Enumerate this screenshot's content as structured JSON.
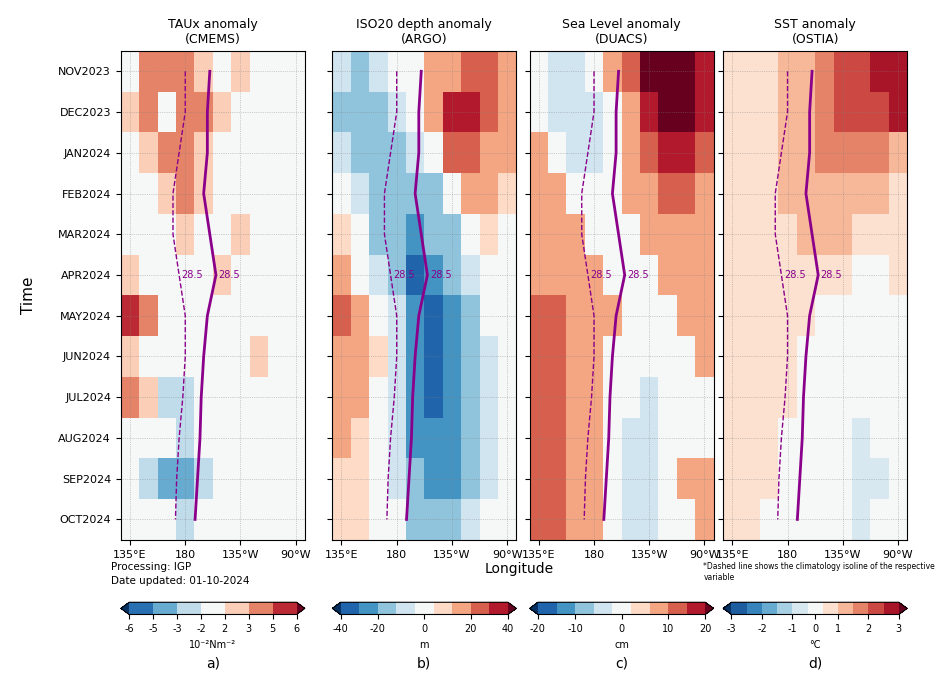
{
  "chart_data": [
    {
      "type": "heatmap",
      "title": "TAUx anomaly\n(CMEMS)",
      "grid": true,
      "x": [
        135,
        150,
        165,
        180,
        195,
        210,
        225,
        240,
        255,
        270
      ],
      "xlim": [
        127.5,
        277.5
      ],
      "xticks": [
        {
          "value": 135,
          "label": "135°E"
        },
        180,
        {
          "value": 225,
          "label": "135°W"
        },
        {
          "value": 270,
          "label": "90°W"
        }
      ],
      "y": [
        "NOV2023",
        "DEC2023",
        "JAN2024",
        "FEB2024",
        "MAR2024",
        "APR2024",
        "MAY2024",
        "JUN2024",
        "JUL2024",
        "AUG2024",
        "SEP2024",
        "OCT2024"
      ],
      "cells": [
        [
          1,
          3,
          4,
          3,
          2,
          1,
          2,
          -1,
          0,
          0
        ],
        [
          2,
          3,
          -2,
          3,
          3,
          2,
          1,
          0,
          1,
          0
        ],
        [
          -2,
          2,
          3,
          4,
          2,
          0,
          -1,
          1,
          0,
          0
        ],
        [
          -2,
          0,
          2,
          3,
          2,
          1,
          0,
          1,
          1,
          0
        ],
        [
          0,
          -2,
          1,
          2,
          -1,
          0,
          2,
          1,
          0,
          0
        ],
        [
          2,
          -2,
          -1,
          0,
          -1,
          2,
          0,
          1,
          1,
          0
        ],
        [
          5,
          3,
          -2,
          -2,
          -1,
          0,
          1,
          0,
          0,
          0
        ],
        [
          2,
          1,
          0,
          -2,
          -2,
          0,
          0,
          2,
          1,
          0
        ],
        [
          3,
          2,
          -3,
          -3,
          -2,
          -1,
          0,
          0,
          1,
          0
        ],
        [
          0,
          -2,
          -2,
          -3,
          -2,
          -2,
          0,
          0,
          0,
          0
        ],
        [
          0,
          -3,
          -5,
          -5,
          -3,
          -2,
          -2,
          0,
          0,
          0
        ],
        [
          0,
          -2,
          -2,
          -3,
          -2,
          -2,
          0,
          0,
          0,
          0
        ]
      ],
      "colorbar": {
        "range": [
          -6,
          6
        ],
        "levels": [
          -6,
          -5,
          -3,
          -2,
          2,
          3,
          5,
          6
        ],
        "ticks": [
          -6,
          -5,
          -3,
          -2,
          2,
          3,
          5,
          6
        ],
        "label": "10⁻²Nm⁻²"
      },
      "isoline_label": "28.5",
      "series": [
        {
          "color": "#8b008b",
          "line_style": "solid",
          "values": [
            200,
            198,
            198,
            195,
            200,
            205,
            198,
            195,
            193,
            192,
            190,
            188
          ]
        },
        {
          "color": "#8b008b",
          "line_style": "dashed",
          "values": [
            180,
            180,
            175,
            170,
            170,
            175,
            180,
            180,
            178,
            175,
            173,
            172
          ]
        }
      ]
    },
    {
      "type": "heatmap",
      "title": "ISO20 depth anomaly\n(ARGO)",
      "grid": true,
      "tick_labels": "x",
      "x": [
        135,
        150,
        165,
        180,
        195,
        210,
        225,
        240,
        255,
        270
      ],
      "xlim": [
        127.5,
        277.5
      ],
      "xticks": [
        {
          "value": 135,
          "label": "135°E"
        },
        180,
        {
          "value": 225,
          "label": "135°W"
        },
        {
          "value": 270,
          "label": "90°W"
        }
      ],
      "y": [
        "NOV2023",
        "DEC2023",
        "JAN2024",
        "FEB2024",
        "MAR2024",
        "APR2024",
        "MAY2024",
        "JUN2024",
        "JUL2024",
        "AUG2024",
        "SEP2024",
        "OCT2024"
      ],
      "cells": [
        [
          -10,
          -15,
          -10,
          -5,
          0,
          10,
          15,
          20,
          20,
          10
        ],
        [
          -15,
          -20,
          -15,
          -10,
          -5,
          10,
          30,
          30,
          20,
          10
        ],
        [
          -10,
          -20,
          -20,
          -15,
          -10,
          0,
          20,
          25,
          15,
          10
        ],
        [
          0,
          -10,
          -20,
          -20,
          -20,
          -15,
          -5,
          10,
          10,
          5
        ],
        [
          5,
          -5,
          -15,
          -20,
          -25,
          -20,
          -15,
          -5,
          5,
          0
        ],
        [
          10,
          0,
          -10,
          -20,
          -35,
          -30,
          -20,
          -10,
          0,
          0
        ],
        [
          20,
          10,
          0,
          -10,
          -30,
          -35,
          -25,
          -15,
          -5,
          0
        ],
        [
          15,
          10,
          5,
          -10,
          -30,
          -35,
          -30,
          -20,
          -10,
          0
        ],
        [
          10,
          10,
          0,
          -10,
          -25,
          -35,
          -30,
          -20,
          -10,
          -5
        ],
        [
          10,
          5,
          0,
          -10,
          -25,
          -30,
          -30,
          -20,
          -10,
          -5
        ],
        [
          5,
          5,
          0,
          -10,
          -20,
          -25,
          -25,
          -15,
          -10,
          -5
        ],
        [
          5,
          5,
          0,
          -5,
          -15,
          -20,
          -20,
          -10,
          -5,
          0
        ]
      ],
      "colorbar": {
        "range": [
          -40,
          40
        ],
        "levels": [
          -40,
          -30,
          -20,
          -10,
          -5,
          5,
          10,
          20,
          30,
          40
        ],
        "ticks": [
          -40,
          -20,
          0,
          20,
          40
        ],
        "label": "m"
      },
      "isoline_label": "28.5",
      "series": [
        {
          "color": "#8b008b",
          "line_style": "solid",
          "values": [
            200,
            198,
            198,
            195,
            200,
            205,
            198,
            195,
            193,
            192,
            190,
            188
          ]
        },
        {
          "color": "#8b008b",
          "line_style": "dashed",
          "values": [
            180,
            180,
            175,
            170,
            170,
            175,
            180,
            180,
            178,
            175,
            173,
            172
          ]
        }
      ]
    },
    {
      "type": "heatmap",
      "title": "Sea Level anomaly\n(DUACS)",
      "grid": true,
      "tick_labels": "x",
      "x": [
        135,
        150,
        165,
        180,
        195,
        210,
        225,
        240,
        255,
        270
      ],
      "xlim": [
        127.5,
        277.5
      ],
      "xticks": [
        {
          "value": 135,
          "label": "135°E"
        },
        180,
        {
          "value": 225,
          "label": "135°W"
        },
        {
          "value": 270,
          "label": "90°W"
        }
      ],
      "y": [
        "NOV2023",
        "DEC2023",
        "JAN2024",
        "FEB2024",
        "MAR2024",
        "APR2024",
        "MAY2024",
        "JUN2024",
        "JUL2024",
        "AUG2024",
        "SEP2024",
        "OCT2024"
      ],
      "cells": [
        [
          0,
          -5,
          -5,
          0,
          5,
          10,
          20,
          20,
          20,
          15
        ],
        [
          0,
          -5,
          -5,
          -5,
          0,
          5,
          15,
          20,
          20,
          15
        ],
        [
          5,
          0,
          -5,
          -5,
          0,
          5,
          10,
          15,
          15,
          10
        ],
        [
          5,
          5,
          0,
          0,
          0,
          5,
          5,
          10,
          10,
          5
        ],
        [
          5,
          5,
          5,
          0,
          0,
          0,
          5,
          5,
          5,
          5
        ],
        [
          5,
          5,
          5,
          5,
          0,
          0,
          0,
          5,
          5,
          5
        ],
        [
          10,
          10,
          5,
          5,
          5,
          0,
          0,
          0,
          5,
          5
        ],
        [
          10,
          10,
          5,
          5,
          0,
          0,
          0,
          0,
          0,
          5
        ],
        [
          10,
          10,
          5,
          5,
          0,
          0,
          -5,
          0,
          0,
          0
        ],
        [
          10,
          10,
          5,
          5,
          0,
          -5,
          -5,
          0,
          0,
          0
        ],
        [
          10,
          10,
          5,
          5,
          0,
          -5,
          -5,
          0,
          5,
          5
        ],
        [
          10,
          10,
          5,
          5,
          0,
          -5,
          -5,
          0,
          0,
          5
        ]
      ],
      "colorbar": {
        "range": [
          -20,
          20
        ],
        "levels": [
          -20,
          -15,
          -10,
          -5,
          -2,
          2,
          5,
          10,
          15,
          20
        ],
        "ticks": [
          -20,
          -10,
          0,
          10,
          20
        ],
        "label": "cm"
      },
      "isoline_label": "28.5",
      "series": [
        {
          "color": "#8b008b",
          "line_style": "solid",
          "values": [
            200,
            198,
            198,
            195,
            200,
            205,
            198,
            195,
            193,
            192,
            190,
            188
          ]
        },
        {
          "color": "#8b008b",
          "line_style": "dashed",
          "values": [
            180,
            180,
            175,
            170,
            170,
            175,
            180,
            180,
            178,
            175,
            173,
            172
          ]
        }
      ]
    },
    {
      "type": "heatmap",
      "title": "SST anomaly\n(OSTIA)",
      "grid": true,
      "tick_labels": "x",
      "x": [
        135,
        150,
        165,
        180,
        195,
        210,
        225,
        240,
        255,
        270
      ],
      "xlim": [
        127.5,
        277.5
      ],
      "xticks": [
        {
          "value": 135,
          "label": "135°E"
        },
        180,
        {
          "value": 225,
          "label": "135°W"
        },
        {
          "value": 270,
          "label": "90°W"
        }
      ],
      "y": [
        "NOV2023",
        "DEC2023",
        "JAN2024",
        "FEB2024",
        "MAR2024",
        "APR2024",
        "MAY2024",
        "JUN2024",
        "JUL2024",
        "AUG2024",
        "SEP2024",
        "OCT2024"
      ],
      "cells": [
        [
          0.5,
          0.5,
          0.5,
          1,
          1,
          1.5,
          2,
          2,
          2.5,
          2.5
        ],
        [
          0.5,
          0.5,
          0.5,
          1,
          1,
          1.5,
          2,
          2,
          2,
          2.5
        ],
        [
          0.5,
          0.5,
          0.5,
          1,
          1,
          1.5,
          1.5,
          1.5,
          1.5,
          1
        ],
        [
          0.5,
          0.5,
          0.5,
          1,
          1,
          1,
          1,
          1,
          1,
          0.5
        ],
        [
          0.5,
          0.5,
          0.5,
          0.5,
          1,
          1,
          1,
          0.5,
          0.5,
          0.5
        ],
        [
          0.5,
          0.5,
          0.5,
          0.5,
          0.5,
          0.5,
          0.5,
          0,
          0,
          0.5
        ],
        [
          0.5,
          0.5,
          0.5,
          0.5,
          0.5,
          0,
          0,
          -0.5,
          0,
          0
        ],
        [
          0.5,
          0.5,
          0.5,
          0.5,
          0,
          0,
          -0.5,
          -0.5,
          -0.5,
          0
        ],
        [
          0.5,
          0.5,
          0.5,
          0.5,
          0,
          -0.5,
          -0.5,
          -0.5,
          -0.5,
          0
        ],
        [
          0.5,
          0.5,
          0.5,
          0,
          0,
          -0.5,
          -0.5,
          -1,
          -0.5,
          -0.5
        ],
        [
          0.5,
          0.5,
          0.5,
          0,
          0,
          -0.5,
          -0.5,
          -1,
          -1,
          -0.5
        ],
        [
          0.5,
          0.5,
          0,
          0,
          0,
          -0.5,
          -0.5,
          -1,
          -0.5,
          -0.5
        ]
      ],
      "colorbar": {
        "range": [
          -3,
          3
        ],
        "levels": [
          -3,
          -2.5,
          -2,
          -1.5,
          -1,
          -0.5,
          0.5,
          1,
          1.5,
          2,
          2.5,
          3
        ],
        "ticks": [
          -3,
          -2,
          -1,
          0,
          1,
          2,
          3
        ],
        "label": "°C"
      },
      "isoline_label": "28.5",
      "series": [
        {
          "color": "#8b008b",
          "line_style": "solid",
          "values": [
            200,
            198,
            198,
            195,
            200,
            205,
            198,
            195,
            193,
            192,
            190,
            188
          ]
        },
        {
          "color": "#8b008b",
          "line_style": "dashed",
          "values": [
            180,
            180,
            175,
            170,
            170,
            175,
            180,
            180,
            178,
            175,
            173,
            172
          ]
        }
      ]
    }
  ],
  "xlabel": "Longitude",
  "ylabel": "Time",
  "notes": [
    "Processing: IGP",
    "Date updated: 01-10-2024"
  ],
  "footnote": "*Dashed line shows the climatology isoline of the respective variable",
  "panel_labels": [
    "a)",
    "b)",
    "c)",
    "d)"
  ]
}
